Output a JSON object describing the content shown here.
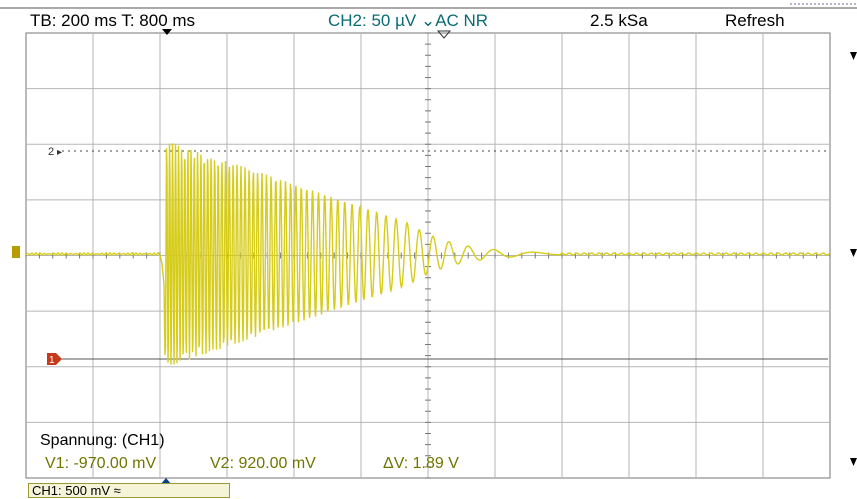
{
  "topbar": {
    "timebase": "TB: 200 ms  T: 800 ms",
    "ch2_setting": "CH2: 50 µV ⌄AC NR",
    "sample_rate": "2.5 kSa",
    "mode": "Refresh"
  },
  "markers": {
    "ref2_label": "2",
    "ch1_label": "1"
  },
  "measurement": {
    "title": "Spannung: (CH1)",
    "v1": "V1: -970.00 mV",
    "v2": "V2: 920.00 mV",
    "delta_v": "ΔV: 1.89 V"
  },
  "channel_box": {
    "ch1": "CH1: 500 mV ≈"
  },
  "colors": {
    "trace": "#d6cc1a",
    "grid": "#b5b5b5",
    "marker": "#c43a1a",
    "ch2_text": "#0b6a73",
    "meas_text": "#6f7600"
  }
}
